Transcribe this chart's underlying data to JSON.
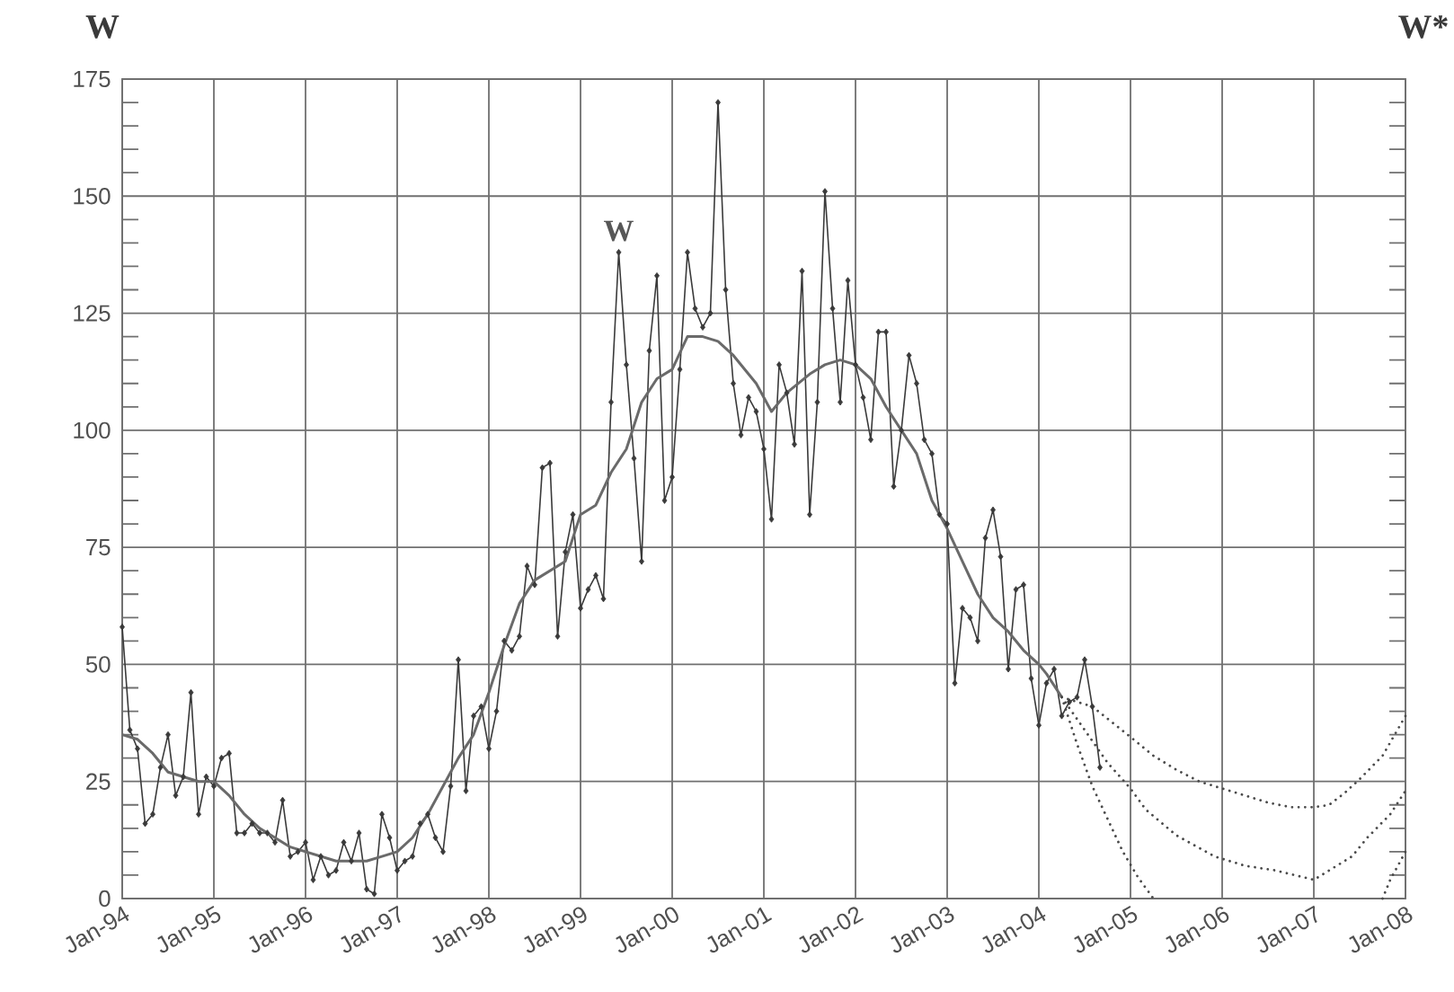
{
  "chart_data": {
    "type": "line",
    "ylabel": "W",
    "y2label": "W*",
    "xlim": [
      "1994-01",
      "2008-01"
    ],
    "xticks": [
      {
        "value": "1994-01",
        "label": "Jan-94"
      },
      {
        "value": "1995-01",
        "label": "Jan-95"
      },
      {
        "value": "1996-01",
        "label": "Jan-96"
      },
      {
        "value": "1997-01",
        "label": "Jan-97"
      },
      {
        "value": "1998-01",
        "label": "Jan-98"
      },
      {
        "value": "1999-01",
        "label": "Jan-99"
      },
      {
        "value": "2000-01",
        "label": "Jan-00"
      },
      {
        "value": "2001-01",
        "label": "Jan-01"
      },
      {
        "value": "2002-01",
        "label": "Jan-02"
      },
      {
        "value": "2003-01",
        "label": "Jan-03"
      },
      {
        "value": "2004-01",
        "label": "Jan-04"
      },
      {
        "value": "2005-01",
        "label": "Jan-05"
      },
      {
        "value": "2006-01",
        "label": "Jan-06"
      },
      {
        "value": "2007-01",
        "label": "Jan-07"
      },
      {
        "value": "2008-01",
        "label": "Jan-08"
      }
    ],
    "ylim": [
      0,
      175
    ],
    "yticks": [
      0,
      {
        "value": 5,
        "label": null
      },
      {
        "value": 10,
        "label": null
      },
      {
        "value": 15,
        "label": null
      },
      {
        "value": 20,
        "label": null
      },
      25,
      {
        "value": 30,
        "label": null
      },
      {
        "value": 35,
        "label": null
      },
      {
        "value": 40,
        "label": null
      },
      {
        "value": 45,
        "label": null
      },
      50,
      {
        "value": 55,
        "label": null
      },
      {
        "value": 60,
        "label": null
      },
      {
        "value": 65,
        "label": null
      },
      {
        "value": 70,
        "label": null
      },
      75,
      {
        "value": 80,
        "label": null
      },
      {
        "value": 85,
        "label": null
      },
      {
        "value": 90,
        "label": null
      },
      {
        "value": 95,
        "label": null
      },
      100,
      {
        "value": 105,
        "label": null
      },
      {
        "value": 110,
        "label": null
      },
      {
        "value": 115,
        "label": null
      },
      {
        "value": 120,
        "label": null
      },
      125,
      {
        "value": 130,
        "label": null
      },
      {
        "value": 135,
        "label": null
      },
      {
        "value": 140,
        "label": null
      },
      {
        "value": 145,
        "label": null
      },
      150,
      {
        "value": 155,
        "label": null
      },
      {
        "value": 160,
        "label": null
      },
      {
        "value": 165,
        "label": null
      },
      {
        "value": 170,
        "label": null
      },
      175
    ],
    "grid": true,
    "x": [
      "1994-01",
      "1994-02",
      "1994-03",
      "1994-04",
      "1994-05",
      "1994-06",
      "1994-07",
      "1994-08",
      "1994-09",
      "1994-10",
      "1994-11",
      "1994-12",
      "1995-01",
      "1995-02",
      "1995-03",
      "1995-04",
      "1995-05",
      "1995-06",
      "1995-07",
      "1995-08",
      "1995-09",
      "1995-10",
      "1995-11",
      "1995-12",
      "1996-01",
      "1996-02",
      "1996-03",
      "1996-04",
      "1996-05",
      "1996-06",
      "1996-07",
      "1996-08",
      "1996-09",
      "1996-10",
      "1996-11",
      "1996-12",
      "1997-01",
      "1997-02",
      "1997-03",
      "1997-04",
      "1997-05",
      "1997-06",
      "1997-07",
      "1997-08",
      "1997-09",
      "1997-10",
      "1997-11",
      "1997-12",
      "1998-01",
      "1998-02",
      "1998-03",
      "1998-04",
      "1998-05",
      "1998-06",
      "1998-07",
      "1998-08",
      "1998-09",
      "1998-10",
      "1998-11",
      "1998-12",
      "1999-01",
      "1999-02",
      "1999-03",
      "1999-04",
      "1999-05",
      "1999-06",
      "1999-07",
      "1999-08",
      "1999-09",
      "1999-10",
      "1999-11",
      "1999-12",
      "2000-01",
      "2000-02",
      "2000-03",
      "2000-04",
      "2000-05",
      "2000-06",
      "2000-07",
      "2000-08",
      "2000-09",
      "2000-10",
      "2000-11",
      "2000-12",
      "2001-01",
      "2001-02",
      "2001-03",
      "2001-04",
      "2001-05",
      "2001-06",
      "2001-07",
      "2001-08",
      "2001-09",
      "2001-10",
      "2001-11",
      "2001-12",
      "2002-01",
      "2002-02",
      "2002-03",
      "2002-04",
      "2002-05",
      "2002-06",
      "2002-07",
      "2002-08",
      "2002-09",
      "2002-10",
      "2002-11",
      "2002-12",
      "2003-01",
      "2003-02",
      "2003-03",
      "2003-04",
      "2003-05",
      "2003-06",
      "2003-07",
      "2003-08",
      "2003-09",
      "2003-10",
      "2003-11",
      "2003-12",
      "2004-01",
      "2004-02",
      "2004-03",
      "2004-04",
      "2004-05",
      "2004-06",
      "2004-07",
      "2004-08",
      "2004-09"
    ],
    "series": [
      {
        "name": "W",
        "color": "#3a3a3a",
        "marker": "diamond",
        "values": [
          58,
          36,
          32,
          16,
          18,
          28,
          35,
          22,
          26,
          44,
          18,
          26,
          24,
          30,
          31,
          14,
          14,
          16,
          14,
          14,
          12,
          21,
          9,
          10,
          12,
          4,
          9,
          5,
          6,
          12,
          8,
          14,
          2,
          1,
          18,
          13,
          6,
          8,
          9,
          16,
          18,
          13,
          10,
          24,
          51,
          23,
          39,
          41,
          32,
          40,
          55,
          53,
          56,
          71,
          67,
          92,
          93,
          56,
          74,
          82,
          62,
          66,
          69,
          64,
          106,
          138,
          114,
          94,
          72,
          117,
          133,
          85,
          90,
          113,
          138,
          126,
          122,
          125,
          170,
          130,
          110,
          99,
          107,
          104,
          96,
          81,
          114,
          108,
          97,
          134,
          82,
          106,
          151,
          126,
          106,
          132,
          114,
          107,
          98,
          121,
          121,
          88,
          100,
          116,
          110,
          98,
          95,
          82,
          80,
          46,
          62,
          60,
          55,
          77,
          83,
          73,
          49,
          66,
          67,
          47,
          37,
          46,
          49,
          39,
          42,
          43,
          51,
          41,
          28
        ]
      },
      {
        "color": "#6a6a6a",
        "x": [
          "1994-01",
          "1994-03",
          "1994-05",
          "1994-07",
          "1994-09",
          "1994-11",
          "1995-01",
          "1995-03",
          "1995-05",
          "1995-07",
          "1995-09",
          "1995-11",
          "1996-01",
          "1996-03",
          "1996-05",
          "1996-07",
          "1996-09",
          "1996-11",
          "1997-01",
          "1997-03",
          "1997-05",
          "1997-07",
          "1997-09",
          "1997-11",
          "1998-01",
          "1998-03",
          "1998-05",
          "1998-07",
          "1998-09",
          "1998-11",
          "1999-01",
          "1999-03",
          "1999-05",
          "1999-07",
          "1999-09",
          "1999-11",
          "2000-01",
          "2000-03",
          "2000-05",
          "2000-07",
          "2000-09",
          "2000-12",
          "2001-02",
          "2001-04",
          "2001-07",
          "2001-09",
          "2001-11",
          "2002-01",
          "2002-03",
          "2002-05",
          "2002-07",
          "2002-09",
          "2002-11",
          "2003-01",
          "2003-03",
          "2003-05",
          "2003-07",
          "2003-09",
          "2003-11",
          "2004-01",
          "2004-02",
          "2004-04"
        ],
        "values": [
          35,
          34,
          31,
          27,
          26,
          25,
          25,
          22,
          18,
          15,
          13,
          11,
          10,
          9,
          8,
          8,
          8,
          9,
          10,
          13,
          18,
          24,
          30,
          35,
          44,
          54,
          63,
          68,
          70,
          72,
          82,
          84,
          91,
          96,
          106,
          111,
          113,
          120,
          120,
          119,
          116,
          110,
          104,
          108,
          112,
          114,
          115,
          114,
          111,
          105,
          100,
          95,
          85,
          79,
          72,
          65,
          60,
          57,
          53,
          50,
          48,
          43
        ]
      },
      {
        "color": "#4a4a4a",
        "line_style": "dotted",
        "x": [
          "2004-04",
          "2004-08",
          "2005-01",
          "2005-04",
          "2005-07",
          "2005-10",
          "2006-01",
          "2006-04",
          "2006-07",
          "2006-10",
          "2007-01",
          "2007-03",
          "2007-05",
          "2007-07",
          "2007-10",
          "2008-01"
        ],
        "values": [
          43,
          41,
          34.5,
          30.5,
          27.5,
          25,
          23.5,
          22,
          20.5,
          19.5,
          19.5,
          20,
          22.5,
          25.5,
          30.5,
          39
        ]
      },
      {
        "color": "#4a4a4a",
        "line_style": "dotted",
        "x": [
          "2004-04",
          "2004-07",
          "2004-10",
          "2005-01",
          "2005-03",
          "2005-07",
          "2005-12",
          "2006-04",
          "2006-08",
          "2007-01",
          "2007-03",
          "2007-06",
          "2007-08",
          "2007-11",
          "2008-01"
        ],
        "values": [
          43,
          36,
          29,
          23.5,
          19,
          13.5,
          9,
          7,
          6,
          4,
          6,
          9,
          13,
          18,
          23
        ]
      },
      {
        "color": "#4a4a4a",
        "line_style": "dotted",
        "x": [
          "2004-04",
          "2004-06",
          "2004-08",
          "2004-10",
          "2004-12",
          "2005-02",
          "2005-04",
          "2006-01",
          "2007-10",
          "2007-11",
          "2008-01"
        ],
        "values": [
          43,
          33,
          24,
          17,
          10,
          4.5,
          0,
          null,
          0,
          4,
          10
        ]
      }
    ]
  }
}
